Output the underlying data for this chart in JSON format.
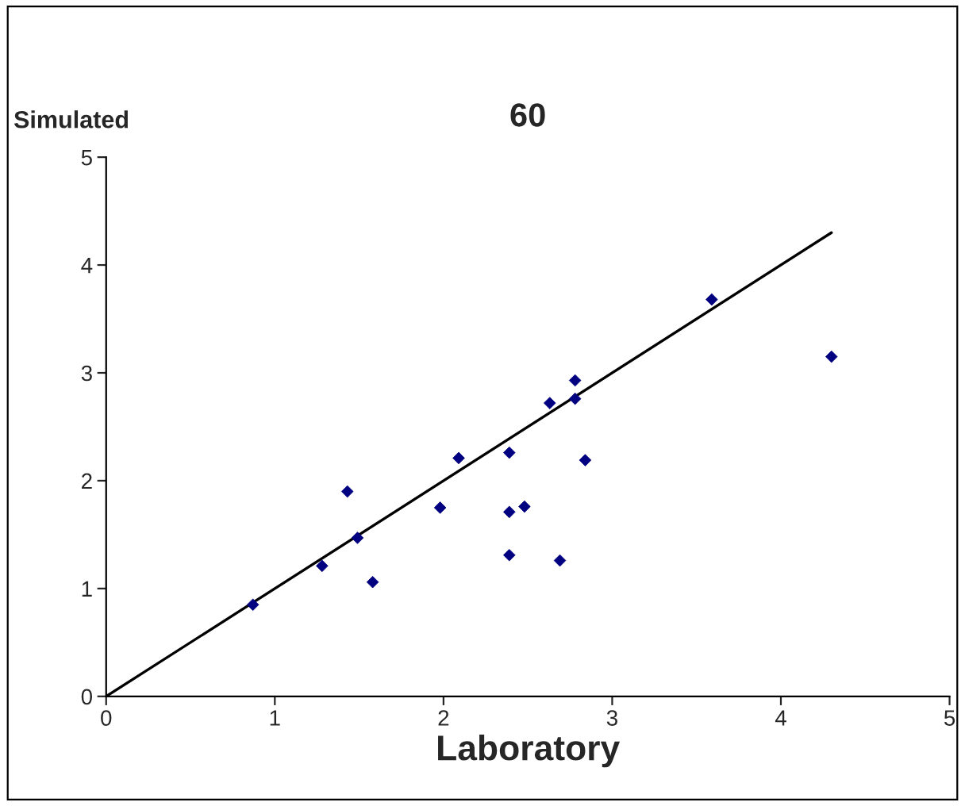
{
  "chart_data": {
    "type": "scatter",
    "title": "60",
    "xlabel": "Laboratory",
    "ylabel": "Simulated",
    "xlim": [
      0,
      5
    ],
    "ylim": [
      0,
      5
    ],
    "xticks": [
      0,
      1,
      2,
      3,
      4,
      5
    ],
    "yticks": [
      0,
      1,
      2,
      3,
      4,
      5
    ],
    "grid": false,
    "series": [
      {
        "marker": "diamond",
        "color": "#000080",
        "x": [
          0.87,
          1.28,
          1.43,
          1.49,
          1.58,
          1.98,
          2.09,
          2.39,
          2.39,
          2.39,
          2.48,
          2.63,
          2.69,
          2.78,
          2.78,
          2.84,
          3.59,
          4.3
        ],
        "values": [
          0.85,
          1.21,
          1.9,
          1.47,
          1.06,
          1.75,
          2.21,
          2.26,
          1.71,
          1.31,
          1.76,
          2.72,
          1.26,
          2.93,
          2.76,
          2.19,
          3.68,
          3.15
        ]
      },
      {
        "type": "line",
        "marker": "none",
        "color": "#000000",
        "x": [
          0,
          4.3
        ],
        "values": [
          0,
          4.3
        ]
      }
    ]
  }
}
